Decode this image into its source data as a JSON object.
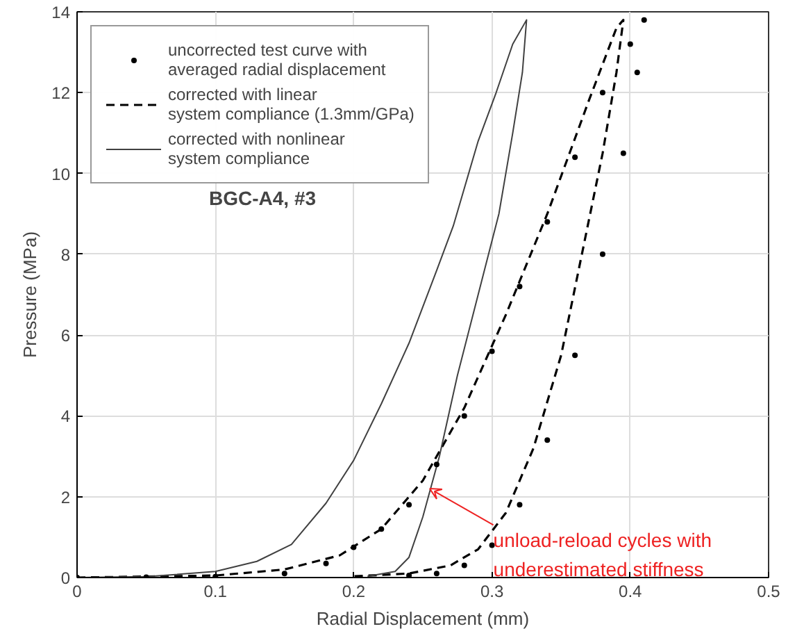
{
  "chart_data": {
    "type": "line",
    "xlabel": "Radial Displacement (mm)",
    "ylabel": "Pressure (MPa)",
    "xlim": [
      0,
      0.5
    ],
    "xticks": [
      0,
      0.1,
      0.2,
      0.3,
      0.4,
      0.5
    ],
    "ylim": [
      0,
      14
    ],
    "yticks": [
      0,
      2,
      4,
      6,
      8,
      10,
      12,
      14
    ],
    "grid": true,
    "legend": "top left",
    "series": [
      {
        "name": "uncorrected test curve with\naveraged radial displacement",
        "type": "scatter",
        "marker": "circle",
        "color": "#000000",
        "x": [
          0,
          0.05,
          0.1,
          0.15,
          0.18,
          0.2,
          0.22,
          0.24,
          0.26,
          0.28,
          0.3,
          0.32,
          0.34,
          0.36,
          0.38,
          0.4,
          0.41,
          0.405,
          0.395,
          0.38,
          0.36,
          0.34,
          0.32,
          0.3,
          0.28,
          0.26,
          0.24
        ],
        "values": [
          0,
          0.01,
          0.02,
          0.1,
          0.35,
          0.75,
          1.2,
          1.8,
          2.8,
          4.0,
          5.6,
          7.2,
          8.8,
          10.4,
          12.0,
          13.2,
          13.8,
          12.5,
          10.5,
          8.0,
          5.5,
          3.4,
          1.8,
          0.8,
          0.3,
          0.1,
          0.05
        ]
      },
      {
        "name": "corrected with linear\nsystem compliance (1.3mm/GPa)",
        "line_style": "dashed",
        "color": "#000000",
        "x": [
          0,
          0.1,
          0.15,
          0.19,
          0.22,
          0.25,
          0.28,
          0.31,
          0.34,
          0.37,
          0.39,
          0.395,
          0.39,
          0.38,
          0.365,
          0.35,
          0.33,
          0.31,
          0.29,
          0.27,
          0.24,
          0.2
        ],
        "values": [
          0,
          0.05,
          0.2,
          0.55,
          1.2,
          2.4,
          4.2,
          6.5,
          9.0,
          11.8,
          13.6,
          13.8,
          12.5,
          10.5,
          8.0,
          5.5,
          3.2,
          1.6,
          0.7,
          0.3,
          0.1,
          0.03
        ]
      },
      {
        "name": "corrected with nonlinear\nsystem compliance",
        "line_style": "solid",
        "color": "#404040",
        "x": [
          0,
          0.05,
          0.1,
          0.13,
          0.155,
          0.18,
          0.2,
          0.22,
          0.24,
          0.26,
          0.272,
          0.29,
          0.303,
          0.315,
          0.325,
          0.322,
          0.315,
          0.305,
          0.29,
          0.275,
          0.262,
          0.25,
          0.24,
          0.23,
          0.21
        ],
        "values": [
          0,
          0.02,
          0.15,
          0.4,
          0.82,
          1.84,
          2.9,
          4.3,
          5.8,
          7.6,
          8.7,
          10.8,
          12.0,
          13.2,
          13.8,
          12.5,
          11.0,
          9.0,
          7.0,
          5.0,
          3.0,
          1.5,
          0.5,
          0.15,
          0.03
        ]
      }
    ],
    "annotations": [
      "BGC-A4, #3",
      {
        "text": "unload-reload cycles with\nunderestimated stiffness",
        "x": 0.255,
        "y": 2.2
      }
    ]
  }
}
